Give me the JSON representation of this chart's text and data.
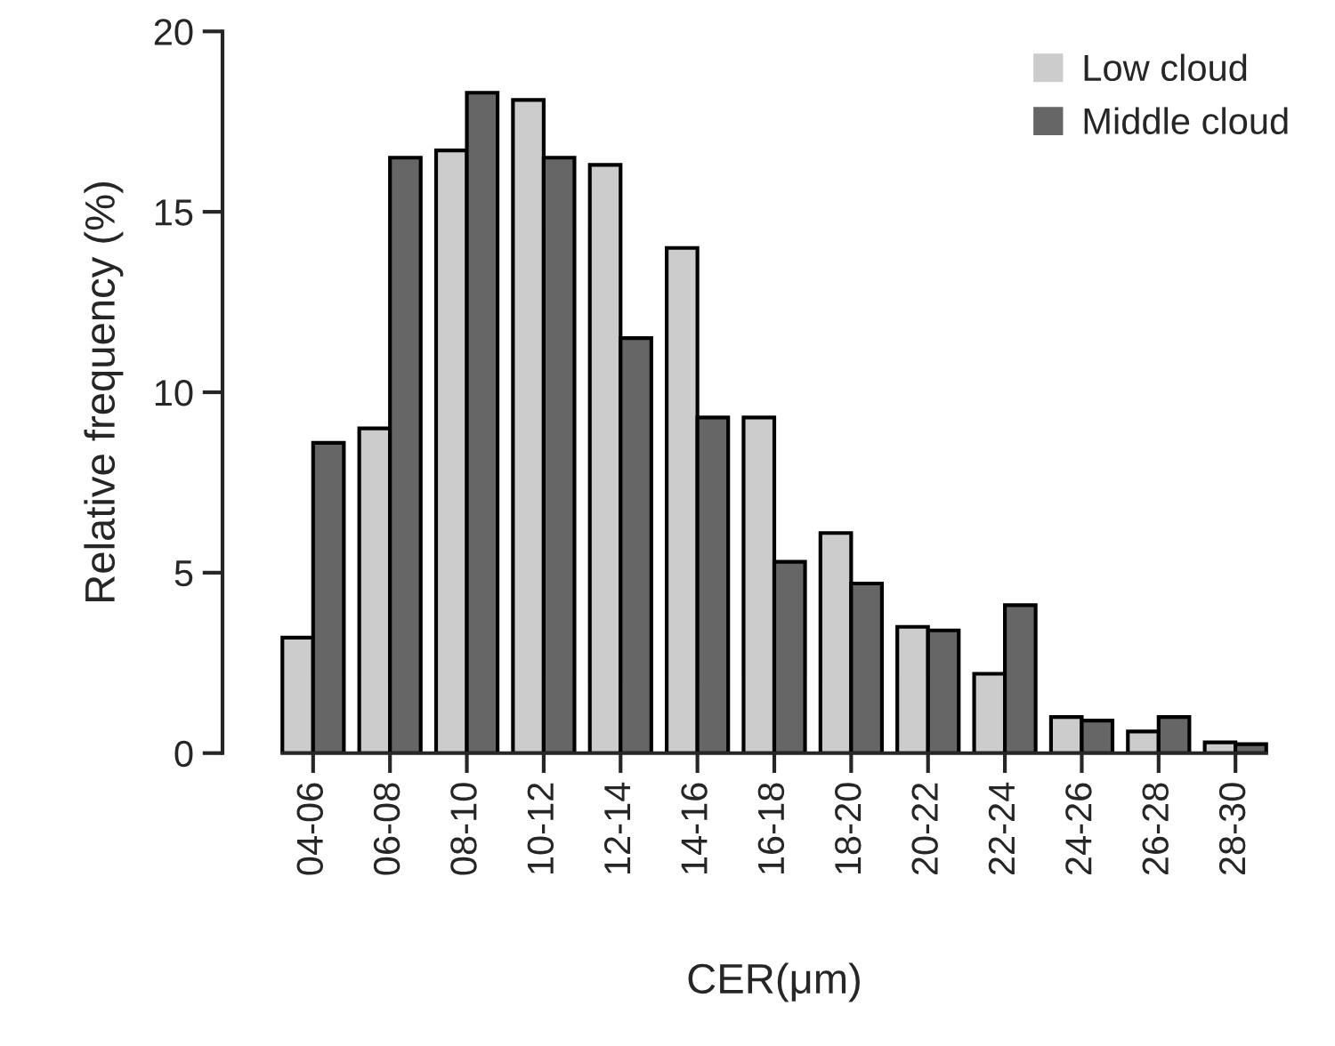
{
  "chart_data": {
    "type": "bar",
    "xlabel": "CER(μm)",
    "ylabel": "Relative frequency (%)",
    "categories": [
      "04-06",
      "06-08",
      "08-10",
      "10-12",
      "12-14",
      "14-16",
      "16-18",
      "18-20",
      "20-22",
      "22-24",
      "24-26",
      "26-28",
      "28-30"
    ],
    "series": [
      {
        "name": "Low cloud",
        "color": "#cccccc",
        "values": [
          3.2,
          9.0,
          16.7,
          18.1,
          16.3,
          14.0,
          9.3,
          6.1,
          3.5,
          2.2,
          1.0,
          0.6,
          0.3
        ]
      },
      {
        "name": "Middle cloud",
        "color": "#666666",
        "values": [
          8.6,
          16.5,
          18.3,
          16.5,
          11.5,
          9.3,
          5.3,
          4.7,
          3.4,
          4.1,
          0.9,
          1.0,
          0.25
        ]
      }
    ],
    "ylim": [
      0,
      20
    ],
    "yticks": [
      0,
      5,
      10,
      15,
      20
    ],
    "grid": false,
    "legend": "top right"
  }
}
